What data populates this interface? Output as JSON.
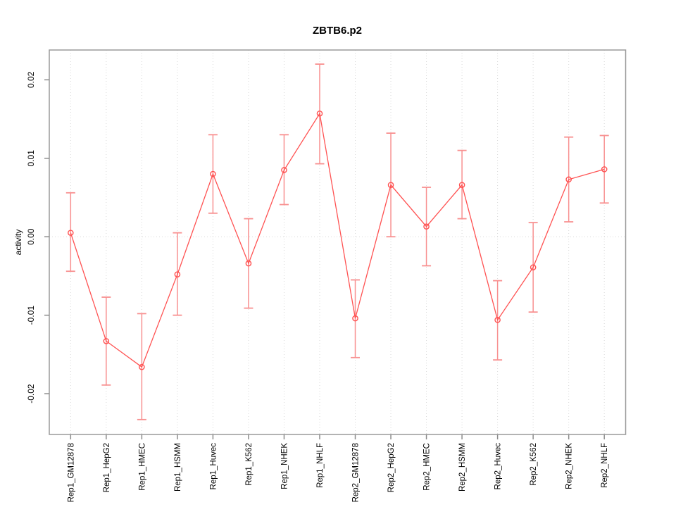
{
  "chart_data": {
    "type": "line",
    "title": "ZBTB6.p2",
    "xlabel": "",
    "ylabel": "activity",
    "categories": [
      "Rep1_GM12878",
      "Rep1_HepG2",
      "Rep1_HMEC",
      "Rep1_HSMM",
      "Rep1_Huvec",
      "Rep1_K562",
      "Rep1_NHEK",
      "Rep1_NHLF",
      "Rep2_GM12878",
      "Rep2_HepG2",
      "Rep2_HMEC",
      "Rep2_HSMM",
      "Rep2_Huvec",
      "Rep2_K562",
      "Rep2_NHEK",
      "Rep2_NHLF"
    ],
    "series": [
      {
        "name": "activity",
        "values": [
          0.0005,
          -0.0133,
          -0.0166,
          -0.0048,
          0.008,
          -0.0034,
          0.0085,
          0.0157,
          -0.0104,
          0.0066,
          0.0013,
          0.0066,
          -0.0106,
          -0.0039,
          0.0073,
          0.0086
        ],
        "error_low": [
          -0.0044,
          -0.0189,
          -0.0233,
          -0.01,
          0.003,
          -0.0091,
          0.0041,
          0.0093,
          -0.0154,
          0.0,
          -0.0037,
          0.0023,
          -0.0157,
          -0.0096,
          0.0019,
          0.0043
        ],
        "error_high": [
          0.0056,
          -0.0077,
          -0.0098,
          0.0005,
          0.013,
          0.0023,
          0.013,
          0.022,
          -0.0055,
          0.0132,
          0.0063,
          0.011,
          -0.0056,
          0.0018,
          0.0127,
          0.0129
        ]
      }
    ],
    "yticks": [
      -0.02,
      -0.01,
      0.0,
      0.01,
      0.02
    ],
    "ylim": [
      -0.0252,
      0.0238
    ],
    "legend": "none",
    "grid": {
      "vertical_at_categories": true,
      "horizontal_at_zero": true
    },
    "point_style": "open-circle",
    "colors": {
      "line": "#ff5252",
      "point": "#ff5252",
      "error_bar": "#f89090",
      "grid": "#d8d8d8",
      "box": "#9a9a9a",
      "tick": "#8c8c8c",
      "text": "#000000",
      "background": "#ffffff"
    }
  }
}
